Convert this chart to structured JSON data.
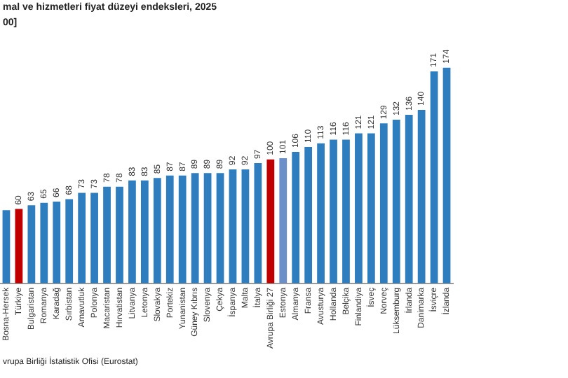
{
  "chart_data": {
    "type": "bar",
    "title": "mal ve hizmetleri fiyat düzeyi endeksleri, 2025",
    "subtitle": "00]",
    "annotations": [
      "vrupa Birliği İstatistik Ofisi (Eurostat)"
    ],
    "categories": [
      "Bosna-Hersek",
      "Türkiye",
      "Bulgaristan",
      "Romanya",
      "Karadağ",
      "Sırbistan",
      "Arnavutluk",
      "Polonya",
      "Macaristan",
      "Hırvatistan",
      "Litvanya",
      "Letonya",
      "Slovakya",
      "Portekiz",
      "Yunanistan",
      "Güney Kıbrıs",
      "Slovenya",
      "Çekya",
      "İspanya",
      "Malta",
      "İtalya",
      "Avrupa Birliği 27",
      "Estonya",
      "Almanya",
      "Fransa",
      "Avusturya",
      "Hollanda",
      "Belçika",
      "Finlandiya",
      "İsveç",
      "Norveç",
      "Lüksemburg",
      "İrlanda",
      "Danimarka",
      "İsviçre",
      "İzlanda"
    ],
    "values": [
      59,
      60,
      63,
      65,
      66,
      68,
      73,
      73,
      78,
      78,
      83,
      83,
      85,
      87,
      87,
      89,
      89,
      89,
      92,
      92,
      97,
      100,
      101,
      106,
      110,
      113,
      116,
      116,
      121,
      121,
      129,
      132,
      136,
      140,
      171,
      174
    ],
    "value_labels": [
      null,
      "60",
      "63",
      "65",
      "66",
      "68",
      "73",
      "73",
      "78",
      "78",
      "83",
      "83",
      "85",
      "87",
      "87",
      "89",
      "89",
      "89",
      "92",
      "92",
      "97",
      "100",
      "101",
      "106",
      "110",
      "113",
      "116",
      "116",
      "121",
      "121",
      "129",
      "132",
      "136",
      "140",
      "171",
      "174"
    ],
    "colors": [
      "#2e7ebf",
      "#c00000",
      "#2e7ebf",
      "#2e7ebf",
      "#2e7ebf",
      "#2e7ebf",
      "#2e7ebf",
      "#2e7ebf",
      "#2e7ebf",
      "#2e7ebf",
      "#2e7ebf",
      "#2e7ebf",
      "#2e7ebf",
      "#2e7ebf",
      "#2e7ebf",
      "#2e7ebf",
      "#2e7ebf",
      "#2e7ebf",
      "#2e7ebf",
      "#2e7ebf",
      "#2e7ebf",
      "#c00000",
      "#6b8fc8",
      "#2e7ebf",
      "#2e7ebf",
      "#2e7ebf",
      "#2e7ebf",
      "#2e7ebf",
      "#2e7ebf",
      "#2e7ebf",
      "#2e7ebf",
      "#2e7ebf",
      "#2e7ebf",
      "#2e7ebf",
      "#2e7ebf",
      "#2e7ebf"
    ],
    "grid": false,
    "legend": false
  }
}
